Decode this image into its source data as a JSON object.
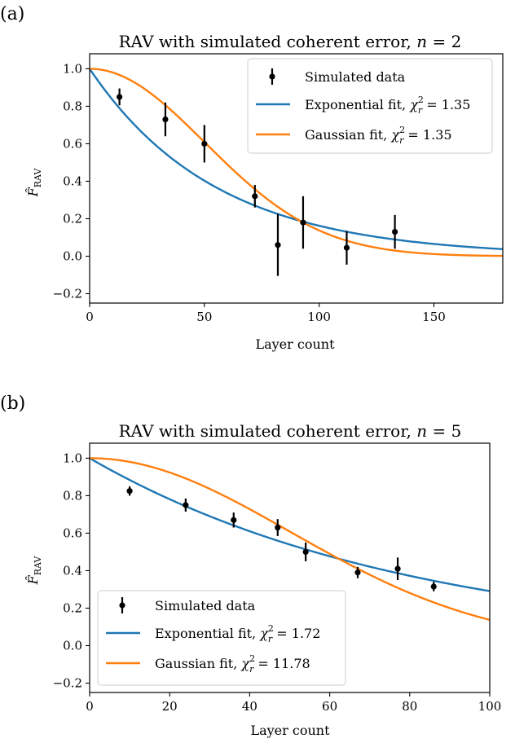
{
  "chart_data": [
    {
      "panel_label": "(a)",
      "type": "line",
      "title": "RAV with simulated coherent error, n = 2",
      "xlabel": "Layer count",
      "ylabel": "F̂_RAV",
      "xlim": [
        0,
        180
      ],
      "ylim": [
        -0.25,
        1.08
      ],
      "xticks": [
        0,
        50,
        100,
        150
      ],
      "yticks": [
        -0.2,
        0.0,
        0.2,
        0.4,
        0.6,
        0.8,
        1.0
      ],
      "grid": false,
      "legend_position": "top-right",
      "legend": [
        {
          "label": "Simulated data",
          "chi": ""
        },
        {
          "label": "Exponential fit, ",
          "chi": "1.35"
        },
        {
          "label": "Gaussian fit, ",
          "chi": "1.35"
        }
      ],
      "scatter": {
        "name": "Simulated data",
        "x": [
          13,
          33,
          50,
          72,
          82,
          93,
          112,
          133
        ],
        "y": [
          0.85,
          0.73,
          0.6,
          0.32,
          0.06,
          0.18,
          0.045,
          0.13
        ],
        "yerr": [
          0.045,
          0.09,
          0.1,
          0.06,
          0.165,
          0.14,
          0.09,
          0.09
        ]
      },
      "curves": [
        {
          "name": "Exponential fit",
          "model": "exponential",
          "scale": 55,
          "color": "#1f77b4"
        },
        {
          "name": "Gaussian fit",
          "model": "gaussian",
          "scale": 71,
          "color": "#ff7f0e"
        }
      ]
    },
    {
      "panel_label": "(b)",
      "type": "line",
      "title": "RAV with simulated coherent error, n = 5",
      "xlabel": "Layer count",
      "ylabel": "F̂_RAV",
      "xlim": [
        0,
        100
      ],
      "ylim": [
        -0.25,
        1.08
      ],
      "xticks": [
        0,
        20,
        40,
        60,
        80,
        100
      ],
      "yticks": [
        -0.2,
        0.0,
        0.2,
        0.4,
        0.6,
        0.8,
        1.0
      ],
      "grid": false,
      "legend_position": "bottom-left",
      "legend": [
        {
          "label": "Simulated data",
          "chi": ""
        },
        {
          "label": "Exponential fit, ",
          "chi": "1.72"
        },
        {
          "label": "Gaussian fit, ",
          "chi": "11.78"
        }
      ],
      "scatter": {
        "name": "Simulated data",
        "x": [
          10,
          24,
          36,
          47,
          54,
          67,
          77,
          86
        ],
        "y": [
          0.825,
          0.75,
          0.67,
          0.63,
          0.5,
          0.39,
          0.41,
          0.315
        ],
        "yerr": [
          0.025,
          0.035,
          0.04,
          0.045,
          0.05,
          0.03,
          0.06,
          0.025
        ]
      },
      "curves": [
        {
          "name": "Exponential fit",
          "model": "exponential",
          "scale": 81,
          "color": "#1f77b4"
        },
        {
          "name": "Gaussian fit",
          "model": "gaussian",
          "scale": 71,
          "color": "#ff7f0e"
        }
      ]
    }
  ]
}
